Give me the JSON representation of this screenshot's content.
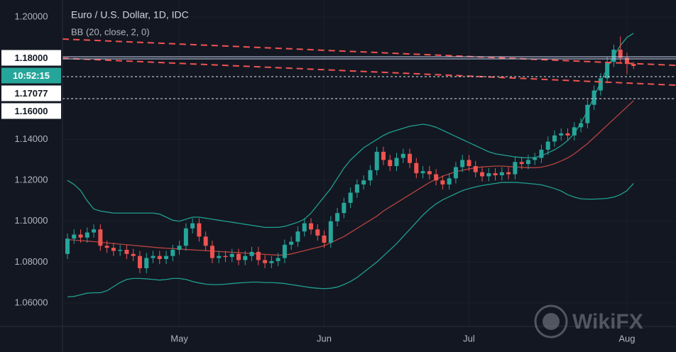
{
  "chart_data": {
    "type": "candlestick",
    "title": "Euro / U.S. Dollar, 1D, IDC",
    "subtitle": "BB (20, close, 2, 0)",
    "categories": [
      null,
      null,
      null,
      null,
      null,
      null,
      null,
      null,
      null,
      null,
      null,
      null,
      null,
      null,
      null,
      null,
      null,
      "May",
      null,
      null,
      null,
      null,
      null,
      null,
      null,
      null,
      null,
      null,
      null,
      null,
      null,
      null,
      null,
      null,
      null,
      null,
      null,
      null,
      null,
      "Jun",
      null,
      null,
      null,
      null,
      null,
      null,
      null,
      null,
      null,
      null,
      null,
      null,
      null,
      null,
      null,
      null,
      null,
      null,
      null,
      null,
      null,
      "Jul",
      null,
      null,
      null,
      null,
      null,
      null,
      null,
      null,
      null,
      null,
      null,
      null,
      null,
      null,
      null,
      null,
      null,
      null,
      null,
      null,
      null,
      null,
      null,
      "Aug",
      null
    ],
    "open": [
      1.084,
      1.0915,
      1.0935,
      1.092,
      1.0945,
      1.096,
      1.088,
      1.087,
      1.0855,
      1.086,
      1.084,
      1.083,
      1.077,
      1.082,
      1.083,
      1.0815,
      1.083,
      1.086,
      1.088,
      1.0965,
      1.099,
      1.0925,
      1.088,
      1.082,
      1.083,
      1.0825,
      1.084,
      1.081,
      1.083,
      1.085,
      1.081,
      1.0795,
      1.0805,
      1.082,
      1.0885,
      1.09,
      1.095,
      1.099,
      1.096,
      1.093,
      1.0895,
      1.1,
      1.104,
      1.109,
      1.114,
      1.118,
      1.12,
      1.125,
      1.134,
      1.13,
      1.127,
      1.131,
      1.133,
      1.1285,
      1.1235,
      1.1245,
      1.123,
      1.12,
      1.118,
      1.121,
      1.1265,
      1.13,
      1.127,
      1.124,
      1.122,
      1.1235,
      1.1225,
      1.124,
      1.123,
      1.129,
      1.128,
      1.13,
      1.131,
      1.135,
      1.139,
      1.142,
      1.143,
      1.142,
      1.146,
      1.148,
      1.157,
      1.164,
      1.17,
      1.178,
      1.184,
      1.18,
      1.177
    ],
    "high": [
      1.094,
      1.096,
      1.096,
      1.097,
      1.0985,
      1.0985,
      1.0905,
      1.0895,
      1.0885,
      1.0885,
      1.0865,
      1.0855,
      1.0845,
      1.0855,
      1.0855,
      1.0855,
      1.0885,
      1.0905,
      1.099,
      1.1015,
      1.1015,
      1.095,
      1.0905,
      1.0855,
      1.0855,
      1.0865,
      1.0865,
      1.0855,
      1.0875,
      1.0875,
      1.0835,
      1.083,
      1.0845,
      1.091,
      1.0925,
      1.0975,
      1.1015,
      1.1015,
      1.0985,
      1.0955,
      1.1025,
      1.1065,
      1.1115,
      1.1165,
      1.1205,
      1.1225,
      1.1275,
      1.1365,
      1.1365,
      1.1325,
      1.1335,
      1.1355,
      1.1355,
      1.131,
      1.127,
      1.127,
      1.1255,
      1.1225,
      1.1235,
      1.129,
      1.1325,
      1.1325,
      1.1295,
      1.1265,
      1.126,
      1.126,
      1.1265,
      1.1265,
      1.1315,
      1.1315,
      1.1325,
      1.1335,
      1.1375,
      1.1415,
      1.1445,
      1.1455,
      1.1455,
      1.1485,
      1.1505,
      1.1595,
      1.1665,
      1.1725,
      1.1805,
      1.1865,
      1.1905,
      1.1825,
      1.178
    ],
    "low": [
      1.0815,
      1.089,
      1.0895,
      1.0895,
      1.092,
      1.0855,
      1.0845,
      1.083,
      1.083,
      1.0815,
      1.0805,
      1.0745,
      1.0745,
      1.0795,
      1.079,
      1.079,
      1.0805,
      1.0835,
      1.0855,
      1.094,
      1.09,
      1.0855,
      1.0795,
      1.0795,
      1.08,
      1.08,
      1.0785,
      1.0785,
      1.0805,
      1.0785,
      1.077,
      1.077,
      1.078,
      1.0795,
      1.086,
      1.0875,
      1.0925,
      1.0935,
      1.0905,
      1.087,
      1.087,
      1.0975,
      1.1015,
      1.1065,
      1.1115,
      1.1155,
      1.1175,
      1.1225,
      1.1275,
      1.1245,
      1.1245,
      1.1285,
      1.126,
      1.121,
      1.121,
      1.1205,
      1.1175,
      1.1155,
      1.1155,
      1.1185,
      1.124,
      1.1245,
      1.1215,
      1.1195,
      1.1195,
      1.12,
      1.12,
      1.1205,
      1.1205,
      1.1255,
      1.1255,
      1.1275,
      1.1285,
      1.1325,
      1.1365,
      1.1395,
      1.1395,
      1.1395,
      1.1435,
      1.1455,
      1.1545,
      1.1615,
      1.1675,
      1.1755,
      1.1775,
      1.172,
      1.1745
    ],
    "close": [
      1.0915,
      1.0935,
      1.092,
      1.0945,
      1.096,
      1.088,
      1.087,
      1.0855,
      1.086,
      1.084,
      1.083,
      1.077,
      1.082,
      1.083,
      1.0815,
      1.083,
      1.086,
      1.088,
      1.0965,
      1.099,
      1.0925,
      1.088,
      1.082,
      1.083,
      1.0825,
      1.084,
      1.081,
      1.083,
      1.085,
      1.081,
      1.0795,
      1.0805,
      1.082,
      1.0885,
      1.09,
      1.095,
      1.099,
      1.096,
      1.093,
      1.0895,
      1.1,
      1.104,
      1.109,
      1.114,
      1.118,
      1.12,
      1.125,
      1.134,
      1.13,
      1.127,
      1.131,
      1.133,
      1.1285,
      1.1235,
      1.1245,
      1.123,
      1.12,
      1.118,
      1.121,
      1.1265,
      1.13,
      1.127,
      1.124,
      1.122,
      1.1235,
      1.1225,
      1.124,
      1.123,
      1.129,
      1.128,
      1.13,
      1.131,
      1.135,
      1.139,
      1.142,
      1.143,
      1.142,
      1.146,
      1.148,
      1.157,
      1.164,
      1.17,
      1.178,
      1.184,
      1.18,
      1.177,
      1.176
    ],
    "up_color": "#26a69a",
    "down_color": "#ef5350",
    "series": [
      {
        "color": "#1f9e8e",
        "values": [
          1.12,
          1.118,
          1.115,
          1.11,
          1.106,
          1.105,
          1.1045,
          1.104,
          1.104,
          1.104,
          1.104,
          1.104,
          1.104,
          1.104,
          1.1035,
          1.102,
          1.1005,
          1.1,
          1.101,
          1.102,
          1.102,
          1.1015,
          1.101,
          1.1005,
          1.1,
          1.0995,
          1.099,
          1.0985,
          1.098,
          1.0975,
          1.097,
          1.097,
          1.097,
          1.0975,
          1.0985,
          1.0995,
          1.101,
          1.104,
          1.108,
          1.112,
          1.116,
          1.121,
          1.126,
          1.13,
          1.133,
          1.136,
          1.138,
          1.14,
          1.142,
          1.1435,
          1.1445,
          1.1455,
          1.1465,
          1.147,
          1.1475,
          1.147,
          1.146,
          1.1445,
          1.143,
          1.1415,
          1.14,
          1.1385,
          1.137,
          1.1355,
          1.134,
          1.133,
          1.1325,
          1.132,
          1.1315,
          1.1312,
          1.131,
          1.1312,
          1.132,
          1.1335,
          1.135,
          1.137,
          1.1395,
          1.143,
          1.148,
          1.154,
          1.161,
          1.168,
          1.175,
          1.181,
          1.186,
          1.19,
          1.192
        ]
      },
      {
        "color": "#b8433f",
        "values": [
          1.091,
          1.0908,
          1.0905,
          1.0903,
          1.09,
          1.0897,
          1.0894,
          1.0891,
          1.0888,
          1.0885,
          1.0882,
          1.0879,
          1.0876,
          1.0873,
          1.087,
          1.0868,
          1.0866,
          1.0864,
          1.0862,
          1.086,
          1.0858,
          1.0856,
          1.0854,
          1.0852,
          1.085,
          1.0848,
          1.0846,
          1.0844,
          1.0842,
          1.084,
          1.0838,
          1.0836,
          1.0834,
          1.0835,
          1.084,
          1.0848,
          1.0856,
          1.0864,
          1.0872,
          1.088,
          1.0895,
          1.091,
          1.0925,
          1.0945,
          1.0965,
          1.0985,
          1.1005,
          1.1025,
          1.105,
          1.107,
          1.109,
          1.111,
          1.113,
          1.115,
          1.117,
          1.119,
          1.1205,
          1.122,
          1.1232,
          1.1242,
          1.125,
          1.1256,
          1.1262,
          1.1266,
          1.1268,
          1.127,
          1.127,
          1.1268,
          1.1266,
          1.1264,
          1.1262,
          1.1262,
          1.1265,
          1.1272,
          1.1282,
          1.1295,
          1.131,
          1.133,
          1.1355,
          1.138,
          1.141,
          1.144,
          1.147,
          1.15,
          1.153,
          1.156,
          1.159
        ]
      },
      {
        "color": "#1f9e8e",
        "values": [
          1.063,
          1.0632,
          1.064,
          1.0648,
          1.065,
          1.065,
          1.066,
          1.068,
          1.07,
          1.0715,
          1.072,
          1.072,
          1.0718,
          1.0715,
          1.0712,
          1.0715,
          1.072,
          1.072,
          1.0715,
          1.0705,
          1.0698,
          1.0692,
          1.069,
          1.069,
          1.0692,
          1.0695,
          1.0698,
          1.07,
          1.0702,
          1.0702,
          1.07,
          1.07,
          1.0698,
          1.0695,
          1.069,
          1.0685,
          1.068,
          1.0675,
          1.0672,
          1.067,
          1.0672,
          1.0678,
          1.069,
          1.0705,
          1.0725,
          1.075,
          1.0775,
          1.08,
          1.083,
          1.086,
          1.089,
          1.0925,
          1.096,
          1.0995,
          1.103,
          1.106,
          1.1085,
          1.1105,
          1.112,
          1.1135,
          1.115,
          1.116,
          1.1168,
          1.1175,
          1.118,
          1.1185,
          1.119,
          1.119,
          1.119,
          1.1188,
          1.1185,
          1.1182,
          1.1178,
          1.117,
          1.116,
          1.1148,
          1.113,
          1.1118,
          1.111,
          1.1108,
          1.1108,
          1.111,
          1.1112,
          1.1118,
          1.113,
          1.115,
          1.1185
        ]
      }
    ],
    "trend_lines": [
      {
        "color": "#ef5350",
        "y": [
          1.1892,
          1.1763
        ]
      },
      {
        "color": "#ef5350",
        "y": [
          1.1798,
          1.1666
        ]
      }
    ],
    "price_lines": [
      {
        "value": 1.18,
        "label": "1.18000",
        "style": "solid"
      },
      {
        "value": 1.17077,
        "label": "1.17077",
        "style": "dashed"
      },
      {
        "value": 1.16,
        "label": "1.16000",
        "style": "dashed"
      }
    ],
    "countdown": "10:52:15",
    "watermark": "WikiFX",
    "ylim": [
      1.0485,
      1.2083
    ],
    "yticks": [
      {
        "value": 1.06,
        "label": "1.06000"
      },
      {
        "value": 1.08,
        "label": "1.08000"
      },
      {
        "value": 1.1,
        "label": "1.10000"
      },
      {
        "value": 1.12,
        "label": "1.12000"
      },
      {
        "value": 1.14,
        "label": "1.14000"
      },
      {
        "value": 1.16,
        "label": "1.16000"
      },
      {
        "value": 1.18,
        "label": "1.18000"
      },
      {
        "value": 1.2,
        "label": "1.20000"
      }
    ],
    "grid": true
  }
}
